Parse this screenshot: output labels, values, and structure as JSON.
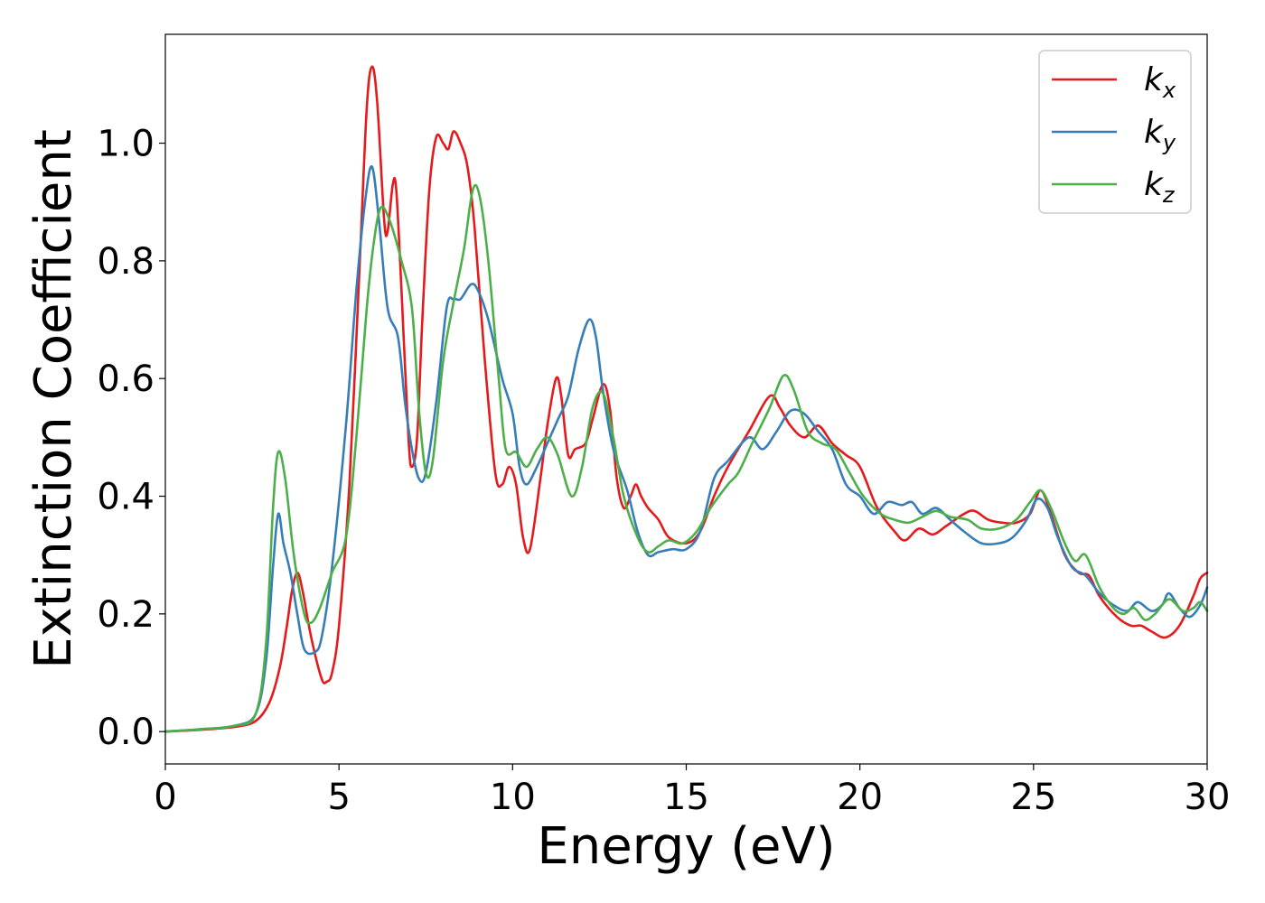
{
  "chart_data": {
    "type": "line",
    "title": "",
    "xlabel": "Energy (eV)",
    "ylabel": "Extinction Coefficient",
    "xlim": [
      0,
      30
    ],
    "ylim": [
      -0.055,
      1.185
    ],
    "xticks": [
      0,
      5,
      10,
      15,
      20,
      25,
      30
    ],
    "xtick_labels": [
      "0",
      "5",
      "10",
      "15",
      "20",
      "25",
      "30"
    ],
    "yticks": [
      0.0,
      0.2,
      0.4,
      0.6,
      0.8,
      1.0
    ],
    "ytick_labels": [
      "0.0",
      "0.2",
      "0.4",
      "0.6",
      "0.8",
      "1.0"
    ],
    "grid": false,
    "legend_position": "top-right",
    "series": [
      {
        "name": "k_x",
        "label_base": "k",
        "label_sub": "x",
        "color": "#e41a1c",
        "points": [
          [
            0,
            0
          ],
          [
            1,
            0.003
          ],
          [
            2,
            0.008
          ],
          [
            2.6,
            0.018
          ],
          [
            3,
            0.05
          ],
          [
            3.3,
            0.11
          ],
          [
            3.5,
            0.18
          ],
          [
            3.65,
            0.24
          ],
          [
            3.8,
            0.27
          ],
          [
            3.95,
            0.24
          ],
          [
            4.2,
            0.16
          ],
          [
            4.5,
            0.09
          ],
          [
            4.65,
            0.085
          ],
          [
            4.8,
            0.1
          ],
          [
            5.0,
            0.18
          ],
          [
            5.3,
            0.42
          ],
          [
            5.6,
            0.8
          ],
          [
            5.8,
            1.06
          ],
          [
            5.95,
            1.13
          ],
          [
            6.1,
            1.07
          ],
          [
            6.3,
            0.87
          ],
          [
            6.4,
            0.85
          ],
          [
            6.55,
            0.93
          ],
          [
            6.65,
            0.92
          ],
          [
            6.8,
            0.75
          ],
          [
            7.0,
            0.5
          ],
          [
            7.1,
            0.45
          ],
          [
            7.25,
            0.5
          ],
          [
            7.4,
            0.7
          ],
          [
            7.6,
            0.92
          ],
          [
            7.8,
            1.01
          ],
          [
            8.0,
            1.0
          ],
          [
            8.15,
            0.99
          ],
          [
            8.3,
            1.02
          ],
          [
            8.5,
            1.0
          ],
          [
            8.7,
            0.96
          ],
          [
            8.9,
            0.86
          ],
          [
            9.2,
            0.63
          ],
          [
            9.5,
            0.44
          ],
          [
            9.7,
            0.42
          ],
          [
            9.9,
            0.45
          ],
          [
            10.1,
            0.42
          ],
          [
            10.3,
            0.33
          ],
          [
            10.5,
            0.31
          ],
          [
            10.8,
            0.43
          ],
          [
            11.0,
            0.52
          ],
          [
            11.25,
            0.6
          ],
          [
            11.4,
            0.57
          ],
          [
            11.6,
            0.47
          ],
          [
            11.8,
            0.48
          ],
          [
            12.1,
            0.49
          ],
          [
            12.3,
            0.53
          ],
          [
            12.6,
            0.59
          ],
          [
            12.8,
            0.55
          ],
          [
            13.0,
            0.43
          ],
          [
            13.2,
            0.38
          ],
          [
            13.4,
            0.4
          ],
          [
            13.55,
            0.42
          ],
          [
            13.7,
            0.4
          ],
          [
            13.9,
            0.38
          ],
          [
            14.2,
            0.36
          ],
          [
            14.5,
            0.33
          ],
          [
            15.0,
            0.32
          ],
          [
            15.4,
            0.34
          ],
          [
            15.8,
            0.4
          ],
          [
            16.2,
            0.45
          ],
          [
            16.8,
            0.51
          ],
          [
            17.4,
            0.57
          ],
          [
            17.7,
            0.55
          ],
          [
            18.0,
            0.52
          ],
          [
            18.4,
            0.5
          ],
          [
            18.8,
            0.52
          ],
          [
            19.2,
            0.49
          ],
          [
            19.6,
            0.47
          ],
          [
            20.0,
            0.45
          ],
          [
            20.5,
            0.38
          ],
          [
            21.0,
            0.34
          ],
          [
            21.3,
            0.325
          ],
          [
            21.7,
            0.345
          ],
          [
            22.1,
            0.335
          ],
          [
            22.5,
            0.35
          ],
          [
            23.0,
            0.37
          ],
          [
            23.3,
            0.375
          ],
          [
            23.7,
            0.36
          ],
          [
            24.1,
            0.355
          ],
          [
            24.5,
            0.355
          ],
          [
            24.9,
            0.37
          ],
          [
            25.2,
            0.41
          ],
          [
            25.5,
            0.37
          ],
          [
            25.9,
            0.3
          ],
          [
            26.3,
            0.27
          ],
          [
            26.6,
            0.265
          ],
          [
            26.9,
            0.23
          ],
          [
            27.4,
            0.195
          ],
          [
            27.8,
            0.18
          ],
          [
            28.1,
            0.18
          ],
          [
            28.4,
            0.17
          ],
          [
            28.8,
            0.16
          ],
          [
            29.2,
            0.18
          ],
          [
            29.6,
            0.23
          ],
          [
            29.8,
            0.26
          ],
          [
            30.0,
            0.27
          ]
        ]
      },
      {
        "name": "k_y",
        "label_base": "k",
        "label_sub": "y",
        "color": "#377eb8",
        "points": [
          [
            0,
            0
          ],
          [
            1,
            0.004
          ],
          [
            2,
            0.01
          ],
          [
            2.6,
            0.03
          ],
          [
            2.9,
            0.12
          ],
          [
            3.1,
            0.28
          ],
          [
            3.25,
            0.37
          ],
          [
            3.4,
            0.32
          ],
          [
            3.6,
            0.27
          ],
          [
            3.8,
            0.2
          ],
          [
            4.0,
            0.14
          ],
          [
            4.3,
            0.135
          ],
          [
            4.5,
            0.16
          ],
          [
            4.8,
            0.28
          ],
          [
            5.2,
            0.52
          ],
          [
            5.5,
            0.75
          ],
          [
            5.75,
            0.9
          ],
          [
            5.95,
            0.96
          ],
          [
            6.15,
            0.87
          ],
          [
            6.4,
            0.72
          ],
          [
            6.7,
            0.67
          ],
          [
            6.9,
            0.56
          ],
          [
            7.1,
            0.48
          ],
          [
            7.3,
            0.43
          ],
          [
            7.5,
            0.44
          ],
          [
            7.8,
            0.56
          ],
          [
            8.1,
            0.72
          ],
          [
            8.3,
            0.735
          ],
          [
            8.5,
            0.735
          ],
          [
            8.8,
            0.76
          ],
          [
            9.0,
            0.75
          ],
          [
            9.3,
            0.7
          ],
          [
            9.7,
            0.6
          ],
          [
            10.0,
            0.54
          ],
          [
            10.2,
            0.45
          ],
          [
            10.4,
            0.42
          ],
          [
            10.7,
            0.45
          ],
          [
            11.0,
            0.49
          ],
          [
            11.3,
            0.53
          ],
          [
            11.6,
            0.57
          ],
          [
            11.9,
            0.65
          ],
          [
            12.2,
            0.7
          ],
          [
            12.4,
            0.67
          ],
          [
            12.6,
            0.58
          ],
          [
            12.9,
            0.48
          ],
          [
            13.3,
            0.41
          ],
          [
            13.6,
            0.34
          ],
          [
            13.9,
            0.3
          ],
          [
            14.2,
            0.305
          ],
          [
            14.6,
            0.31
          ],
          [
            15.0,
            0.31
          ],
          [
            15.4,
            0.34
          ],
          [
            15.8,
            0.43
          ],
          [
            16.2,
            0.46
          ],
          [
            16.8,
            0.5
          ],
          [
            17.2,
            0.48
          ],
          [
            17.6,
            0.51
          ],
          [
            18.0,
            0.545
          ],
          [
            18.4,
            0.54
          ],
          [
            18.8,
            0.51
          ],
          [
            19.2,
            0.48
          ],
          [
            19.6,
            0.42
          ],
          [
            20.0,
            0.4
          ],
          [
            20.4,
            0.37
          ],
          [
            20.8,
            0.39
          ],
          [
            21.2,
            0.385
          ],
          [
            21.5,
            0.39
          ],
          [
            21.8,
            0.37
          ],
          [
            22.2,
            0.38
          ],
          [
            22.6,
            0.36
          ],
          [
            23.0,
            0.34
          ],
          [
            23.5,
            0.32
          ],
          [
            24.0,
            0.32
          ],
          [
            24.4,
            0.33
          ],
          [
            24.8,
            0.36
          ],
          [
            25.1,
            0.395
          ],
          [
            25.4,
            0.38
          ],
          [
            25.7,
            0.33
          ],
          [
            26.1,
            0.28
          ],
          [
            26.5,
            0.265
          ],
          [
            26.9,
            0.235
          ],
          [
            27.3,
            0.215
          ],
          [
            27.7,
            0.205
          ],
          [
            28.0,
            0.22
          ],
          [
            28.4,
            0.205
          ],
          [
            28.7,
            0.215
          ],
          [
            28.9,
            0.235
          ],
          [
            29.2,
            0.21
          ],
          [
            29.5,
            0.195
          ],
          [
            29.8,
            0.215
          ],
          [
            30.0,
            0.245
          ]
        ]
      },
      {
        "name": "k_z",
        "label_base": "k",
        "label_sub": "z",
        "color": "#4daf4a",
        "points": [
          [
            0,
            0
          ],
          [
            1,
            0.004
          ],
          [
            2,
            0.01
          ],
          [
            2.6,
            0.03
          ],
          [
            2.9,
            0.15
          ],
          [
            3.1,
            0.38
          ],
          [
            3.25,
            0.475
          ],
          [
            3.45,
            0.43
          ],
          [
            3.7,
            0.3
          ],
          [
            4.0,
            0.2
          ],
          [
            4.2,
            0.185
          ],
          [
            4.45,
            0.21
          ],
          [
            4.8,
            0.27
          ],
          [
            5.2,
            0.33
          ],
          [
            5.5,
            0.5
          ],
          [
            5.8,
            0.72
          ],
          [
            6.0,
            0.83
          ],
          [
            6.2,
            0.89
          ],
          [
            6.45,
            0.87
          ],
          [
            6.8,
            0.8
          ],
          [
            7.1,
            0.72
          ],
          [
            7.3,
            0.55
          ],
          [
            7.5,
            0.44
          ],
          [
            7.7,
            0.46
          ],
          [
            8.0,
            0.63
          ],
          [
            8.3,
            0.73
          ],
          [
            8.6,
            0.82
          ],
          [
            8.85,
            0.92
          ],
          [
            9.05,
            0.91
          ],
          [
            9.3,
            0.8
          ],
          [
            9.6,
            0.6
          ],
          [
            9.8,
            0.48
          ],
          [
            10.1,
            0.475
          ],
          [
            10.4,
            0.45
          ],
          [
            10.7,
            0.48
          ],
          [
            11.0,
            0.5
          ],
          [
            11.3,
            0.47
          ],
          [
            11.7,
            0.4
          ],
          [
            12.0,
            0.45
          ],
          [
            12.3,
            0.55
          ],
          [
            12.6,
            0.575
          ],
          [
            12.9,
            0.5
          ],
          [
            13.2,
            0.4
          ],
          [
            13.6,
            0.33
          ],
          [
            13.9,
            0.305
          ],
          [
            14.2,
            0.315
          ],
          [
            14.5,
            0.325
          ],
          [
            14.9,
            0.32
          ],
          [
            15.3,
            0.34
          ],
          [
            15.7,
            0.38
          ],
          [
            16.2,
            0.42
          ],
          [
            16.5,
            0.44
          ],
          [
            16.9,
            0.49
          ],
          [
            17.4,
            0.55
          ],
          [
            17.8,
            0.605
          ],
          [
            18.1,
            0.58
          ],
          [
            18.5,
            0.51
          ],
          [
            18.9,
            0.49
          ],
          [
            19.3,
            0.48
          ],
          [
            19.7,
            0.44
          ],
          [
            20.1,
            0.4
          ],
          [
            20.6,
            0.37
          ],
          [
            21.0,
            0.36
          ],
          [
            21.4,
            0.355
          ],
          [
            21.8,
            0.365
          ],
          [
            22.2,
            0.375
          ],
          [
            22.6,
            0.365
          ],
          [
            23.1,
            0.36
          ],
          [
            23.5,
            0.345
          ],
          [
            24.0,
            0.345
          ],
          [
            24.5,
            0.36
          ],
          [
            24.9,
            0.39
          ],
          [
            25.2,
            0.41
          ],
          [
            25.5,
            0.38
          ],
          [
            25.9,
            0.32
          ],
          [
            26.2,
            0.29
          ],
          [
            26.5,
            0.3
          ],
          [
            26.9,
            0.245
          ],
          [
            27.3,
            0.21
          ],
          [
            27.6,
            0.2
          ],
          [
            27.9,
            0.21
          ],
          [
            28.2,
            0.19
          ],
          [
            28.5,
            0.2
          ],
          [
            28.9,
            0.225
          ],
          [
            29.3,
            0.205
          ],
          [
            29.6,
            0.21
          ],
          [
            29.8,
            0.22
          ],
          [
            30.0,
            0.205
          ]
        ]
      }
    ]
  }
}
